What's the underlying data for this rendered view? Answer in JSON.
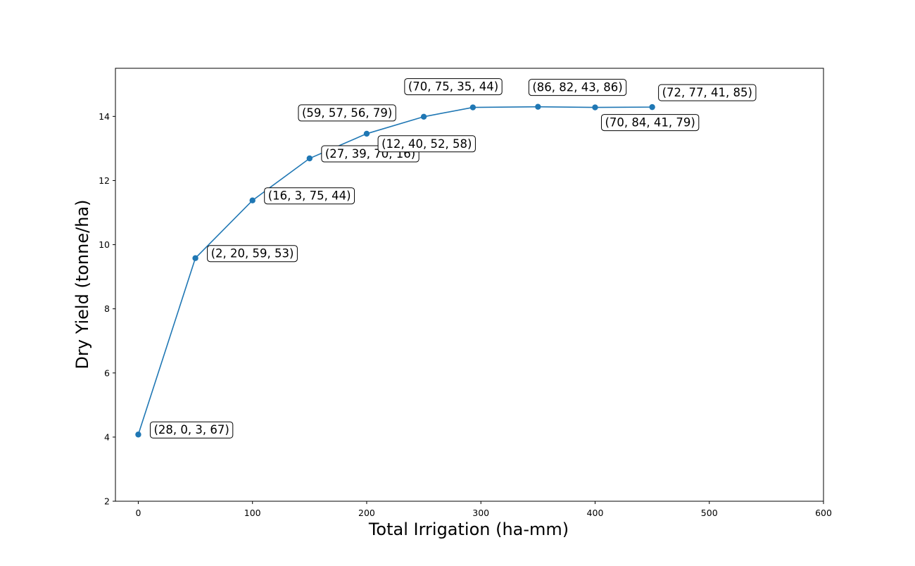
{
  "chart_data": {
    "type": "line",
    "title": "",
    "xlabel": "Total Irrigation (ha-mm)",
    "ylabel": "Dry Yield (tonne/ha)",
    "xlim": [
      -20,
      600
    ],
    "ylim": [
      2,
      15.5
    ],
    "xticks": [
      0,
      100,
      200,
      300,
      400,
      500,
      600
    ],
    "yticks": [
      2,
      4,
      6,
      8,
      10,
      12,
      14
    ],
    "grid": false,
    "legend": "none",
    "series": [
      {
        "color": "#1f77b4",
        "marker": "circle",
        "points": [
          {
            "x": 0,
            "y": 4.08,
            "label": "(28, 0, 3, 67)",
            "label_pos": "right"
          },
          {
            "x": 50,
            "y": 9.58,
            "label": "(2, 20, 59, 53)",
            "label_pos": "right"
          },
          {
            "x": 100,
            "y": 11.38,
            "label": "(16, 3, 75, 44)",
            "label_pos": "right"
          },
          {
            "x": 150,
            "y": 12.69,
            "label": "(27, 39, 70, 16)",
            "label_pos": "right"
          },
          {
            "x": 200,
            "y": 13.46,
            "label": "(59, 57, 56, 79)",
            "label_pos": "upper-left"
          },
          {
            "x": 250,
            "y": 13.99,
            "label": "(12, 40, 52, 58)",
            "label_pos": "lower-left"
          },
          {
            "x": 293,
            "y": 14.28,
            "label": "(70, 75, 35, 44)",
            "label_pos": "upper-left"
          },
          {
            "x": 350,
            "y": 14.3,
            "label": "(86, 82, 43, 86)",
            "label_pos": "upper"
          },
          {
            "x": 400,
            "y": 14.28,
            "label": "(70, 84, 41, 79)",
            "label_pos": "lower-right"
          },
          {
            "x": 450,
            "y": 14.29,
            "label": "(72, 77, 41, 85)",
            "label_pos": "upper-right"
          }
        ]
      }
    ]
  }
}
